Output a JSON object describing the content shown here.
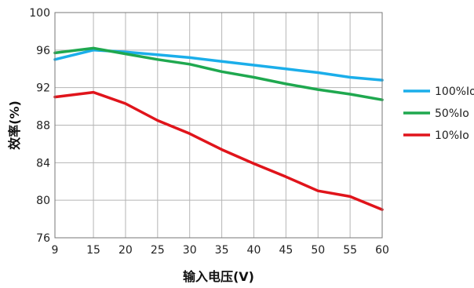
{
  "chart_data": {
    "type": "line",
    "xlabel": "输入电压(V)",
    "ylabel": "效率(%)",
    "xlim": [
      9,
      60
    ],
    "ylim": [
      76,
      100
    ],
    "x_ticks": [
      9,
      15,
      20,
      25,
      30,
      35,
      40,
      45,
      50,
      55,
      60
    ],
    "y_ticks": [
      76,
      80,
      84,
      88,
      92,
      96,
      100
    ],
    "grid": true,
    "legend_position": "right",
    "x": [
      9,
      15,
      20,
      25,
      30,
      35,
      40,
      45,
      50,
      55,
      60
    ],
    "series": [
      {
        "name": "100%Io",
        "color": "#1BAEEA",
        "values": [
          95.0,
          96.0,
          95.8,
          95.5,
          95.2,
          94.8,
          94.4,
          94.0,
          93.6,
          93.1,
          92.8
        ]
      },
      {
        "name": "50%Io",
        "color": "#1FA84F",
        "values": [
          95.7,
          96.2,
          95.6,
          95.0,
          94.5,
          93.7,
          93.1,
          92.4,
          91.8,
          91.3,
          90.7
        ]
      },
      {
        "name": "10%Io",
        "color": "#E0141B",
        "values": [
          91.0,
          91.5,
          90.3,
          88.5,
          87.1,
          85.4,
          83.9,
          82.5,
          81.0,
          80.4,
          79.0
        ]
      }
    ]
  }
}
